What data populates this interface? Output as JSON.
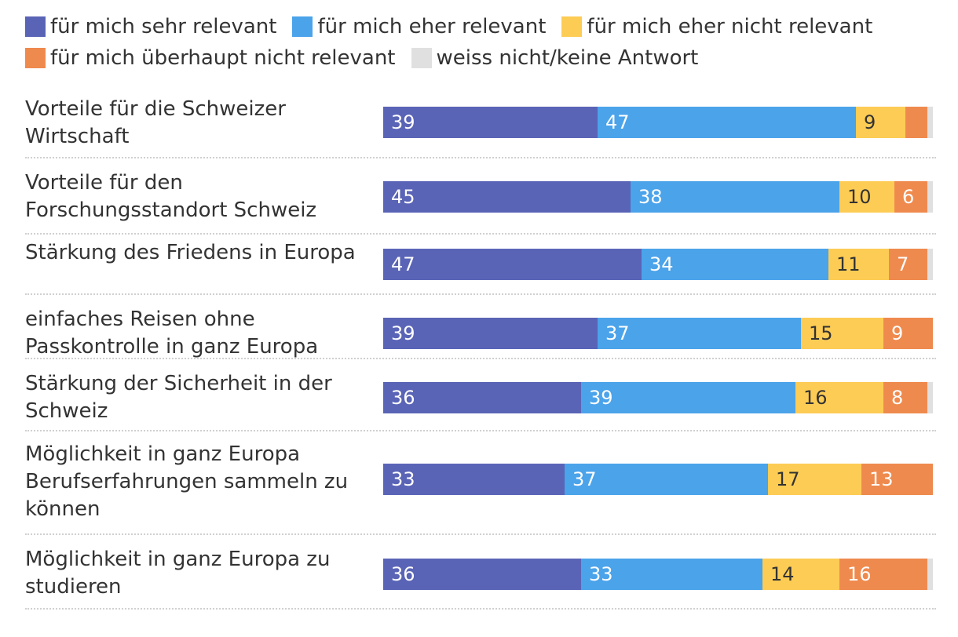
{
  "chart_data": {
    "type": "bar",
    "orientation": "horizontal",
    "stacked": true,
    "title": "",
    "xlabel": "",
    "ylabel": "",
    "xlim": [
      0,
      100
    ],
    "legend_position": "top",
    "categories": [
      "Vorteile für die Schweizer Wirtschaft",
      "Vorteile für den Forschungsstandort Schweiz",
      "Stärkung des Friedens in Europa",
      "einfaches Reisen ohne Passkontrolle in ganz Europa",
      "Stärkung der Sicherheit in der Schweiz",
      "Möglichkeit in ganz Europa Berufserfahrungen sammeln zu können",
      "Möglichkeit in ganz Europa zu studieren"
    ],
    "series": [
      {
        "name": "für mich sehr relevant",
        "color": "#5a64b6",
        "text_color": "#ffffff",
        "values": [
          39,
          45,
          47,
          39,
          36,
          33,
          36
        ]
      },
      {
        "name": "für mich eher relevant",
        "color": "#4ba3ea",
        "text_color": "#ffffff",
        "values": [
          47,
          38,
          34,
          37,
          39,
          37,
          33
        ]
      },
      {
        "name": "für mich eher nicht relevant",
        "color": "#fdcc55",
        "text_color": "#333333",
        "values": [
          9,
          10,
          11,
          15,
          16,
          17,
          14
        ]
      },
      {
        "name": "für mich überhaupt nicht relevant",
        "color": "#ef8a4e",
        "text_color": "#ffffff",
        "values": [
          4,
          6,
          7,
          9,
          8,
          13,
          16
        ]
      },
      {
        "name": "weiss nicht/keine Antwort",
        "color": "#e0e0e0",
        "text_color": "#333333",
        "values": [
          1,
          1,
          1,
          0,
          1,
          0,
          1
        ]
      }
    ],
    "shown_labels": [
      [
        "39",
        "47",
        "9",
        "",
        ""
      ],
      [
        "45",
        "38",
        "10",
        "6",
        ""
      ],
      [
        "47",
        "34",
        "11",
        "7",
        ""
      ],
      [
        "39",
        "37",
        "15",
        "9",
        ""
      ],
      [
        "36",
        "39",
        "16",
        "8",
        ""
      ],
      [
        "33",
        "37",
        "17",
        "13",
        ""
      ],
      [
        "36",
        "33",
        "14",
        "16",
        ""
      ]
    ]
  }
}
